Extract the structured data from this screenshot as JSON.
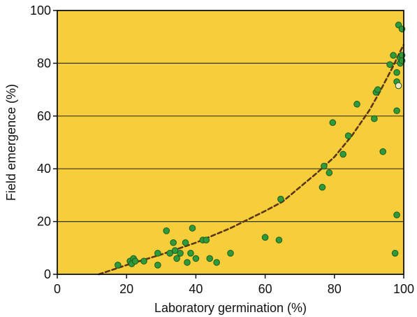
{
  "colors": {
    "plot_background": "#f6cd3a",
    "gridline": "#3b3413",
    "point_fill": "#2f9a3a",
    "point_stroke": "#1d5a1f",
    "open_point_fill": "#f3ead0",
    "trend_line": "#5a3510",
    "axis": "#111111"
  },
  "chart_data": {
    "type": "scatter",
    "title": "",
    "xlabel": "Laboratory germination (%)",
    "ylabel": "Field emergence (%)",
    "xlim": [
      0,
      100
    ],
    "ylim": [
      0,
      100
    ],
    "x_ticks": [
      0,
      20,
      40,
      60,
      80,
      100
    ],
    "y_ticks": [
      0,
      20,
      40,
      60,
      80,
      100
    ],
    "x_tick_labels": [
      "0",
      "20",
      "40",
      "60",
      "80",
      "100"
    ],
    "y_tick_labels": [
      "0",
      "20",
      "40",
      "60",
      "80",
      "100"
    ],
    "grid": "horizontal",
    "points": [
      {
        "x": 17.5,
        "y": 3.5
      },
      {
        "x": 21,
        "y": 5
      },
      {
        "x": 21.5,
        "y": 4
      },
      {
        "x": 22,
        "y": 6
      },
      {
        "x": 22.5,
        "y": 5
      },
      {
        "x": 25,
        "y": 5
      },
      {
        "x": 29,
        "y": 3.5
      },
      {
        "x": 29,
        "y": 8
      },
      {
        "x": 31.5,
        "y": 16.5
      },
      {
        "x": 32.5,
        "y": 8
      },
      {
        "x": 33.5,
        "y": 12
      },
      {
        "x": 34,
        "y": 9
      },
      {
        "x": 34.5,
        "y": 6
      },
      {
        "x": 35.5,
        "y": 8
      },
      {
        "x": 37,
        "y": 12
      },
      {
        "x": 37.5,
        "y": 4.5
      },
      {
        "x": 38.5,
        "y": 8
      },
      {
        "x": 39,
        "y": 17.5
      },
      {
        "x": 40,
        "y": 6
      },
      {
        "x": 42,
        "y": 13
      },
      {
        "x": 43,
        "y": 13
      },
      {
        "x": 44,
        "y": 6
      },
      {
        "x": 46,
        "y": 4.5
      },
      {
        "x": 50,
        "y": 8
      },
      {
        "x": 60,
        "y": 14
      },
      {
        "x": 64,
        "y": 13
      },
      {
        "x": 64.5,
        "y": 28.5
      },
      {
        "x": 76.5,
        "y": 33
      },
      {
        "x": 77,
        "y": 41
      },
      {
        "x": 78.5,
        "y": 38.5
      },
      {
        "x": 79.5,
        "y": 57.5
      },
      {
        "x": 82.5,
        "y": 45.5
      },
      {
        "x": 84,
        "y": 52.5
      },
      {
        "x": 86.5,
        "y": 64.5
      },
      {
        "x": 91.5,
        "y": 59
      },
      {
        "x": 92,
        "y": 69
      },
      {
        "x": 92.5,
        "y": 70
      },
      {
        "x": 94,
        "y": 46.5
      },
      {
        "x": 96,
        "y": 79.5
      },
      {
        "x": 97,
        "y": 83
      },
      {
        "x": 97.5,
        "y": 8
      },
      {
        "x": 98,
        "y": 73
      },
      {
        "x": 98,
        "y": 76.5
      },
      {
        "x": 98,
        "y": 62
      },
      {
        "x": 98,
        "y": 22.5
      },
      {
        "x": 98.5,
        "y": 94.5
      },
      {
        "x": 98.5,
        "y": 71.5,
        "open": true
      },
      {
        "x": 99,
        "y": 80
      },
      {
        "x": 99,
        "y": 82
      },
      {
        "x": 99.5,
        "y": 93
      },
      {
        "x": 99.5,
        "y": 83
      },
      {
        "x": 99.5,
        "y": 81
      }
    ],
    "trend_line": {
      "style": "dashed",
      "points": [
        {
          "x": 12,
          "y": 0
        },
        {
          "x": 20,
          "y": 3.5
        },
        {
          "x": 30,
          "y": 7.5
        },
        {
          "x": 40,
          "y": 12
        },
        {
          "x": 50,
          "y": 17.5
        },
        {
          "x": 60,
          "y": 24
        },
        {
          "x": 65,
          "y": 27.5
        },
        {
          "x": 70,
          "y": 33
        },
        {
          "x": 75,
          "y": 38.5
        },
        {
          "x": 80,
          "y": 44.5
        },
        {
          "x": 85,
          "y": 52.5
        },
        {
          "x": 90,
          "y": 62
        },
        {
          "x": 93,
          "y": 69
        },
        {
          "x": 95,
          "y": 74
        },
        {
          "x": 97,
          "y": 79
        },
        {
          "x": 99,
          "y": 84.5
        },
        {
          "x": 100,
          "y": 87
        }
      ]
    }
  }
}
